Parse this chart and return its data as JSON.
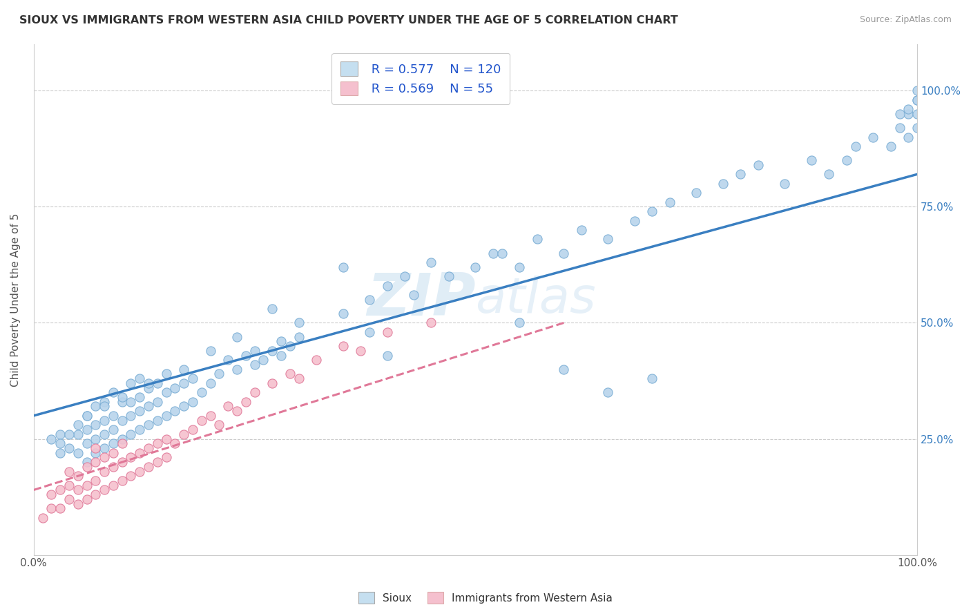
{
  "title": "SIOUX VS IMMIGRANTS FROM WESTERN ASIA CHILD POVERTY UNDER THE AGE OF 5 CORRELATION CHART",
  "source": "Source: ZipAtlas.com",
  "ylabel": "Child Poverty Under the Age of 5",
  "sioux_R": 0.577,
  "sioux_N": 120,
  "immigrants_R": 0.569,
  "immigrants_N": 55,
  "sioux_dot_color": "#b8d4ec",
  "sioux_dot_edge": "#7aadd4",
  "sioux_line_color": "#3a7fc1",
  "immigrants_dot_color": "#f5c0ce",
  "immigrants_dot_edge": "#e07898",
  "immigrants_line_color": "#e07898",
  "watermark": "ZIPAtlas",
  "legend_labels": [
    "Sioux",
    "Immigrants from Western Asia"
  ],
  "background_color": "#ffffff",
  "sioux_line_x0": 0.0,
  "sioux_line_y0": 0.3,
  "sioux_line_x1": 1.0,
  "sioux_line_y1": 0.82,
  "immig_line_x0": 0.0,
  "immig_line_y0": 0.14,
  "immig_line_x1": 0.6,
  "immig_line_y1": 0.5,
  "xmin": 0.0,
  "xmax": 1.0,
  "ymin": 0.0,
  "ymax": 1.1,
  "ytick_vals": [
    0.25,
    0.5,
    0.75,
    1.0
  ],
  "ytick_labels": [
    "25.0%",
    "50.0%",
    "75.0%",
    "100.0%"
  ],
  "xtick_vals": [
    0.0,
    1.0
  ],
  "xtick_labels": [
    "0.0%",
    "100.0%"
  ],
  "sioux_x": [
    0.02,
    0.03,
    0.03,
    0.04,
    0.05,
    0.05,
    0.06,
    0.06,
    0.06,
    0.06,
    0.07,
    0.07,
    0.07,
    0.07,
    0.08,
    0.08,
    0.08,
    0.08,
    0.09,
    0.09,
    0.09,
    0.09,
    0.1,
    0.1,
    0.1,
    0.11,
    0.11,
    0.11,
    0.11,
    0.12,
    0.12,
    0.12,
    0.12,
    0.13,
    0.13,
    0.13,
    0.14,
    0.14,
    0.14,
    0.15,
    0.15,
    0.15,
    0.16,
    0.16,
    0.17,
    0.17,
    0.18,
    0.18,
    0.19,
    0.2,
    0.21,
    0.22,
    0.23,
    0.24,
    0.25,
    0.25,
    0.26,
    0.27,
    0.28,
    0.28,
    0.29,
    0.3,
    0.35,
    0.38,
    0.4,
    0.42,
    0.45,
    0.47,
    0.5,
    0.52,
    0.53,
    0.55,
    0.57,
    0.6,
    0.62,
    0.65,
    0.68,
    0.7,
    0.72,
    0.75,
    0.78,
    0.8,
    0.82,
    0.85,
    0.88,
    0.9,
    0.92,
    0.93,
    0.95,
    0.97,
    0.98,
    0.99,
    0.99,
    1.0,
    1.0,
    1.0,
    1.0,
    1.0,
    0.99,
    0.98,
    0.55,
    0.6,
    0.65,
    0.7,
    0.35,
    0.38,
    0.4,
    0.43,
    0.3,
    0.27,
    0.23,
    0.2,
    0.17,
    0.13,
    0.1,
    0.08,
    0.06,
    0.05,
    0.04,
    0.03
  ],
  "sioux_y": [
    0.25,
    0.22,
    0.26,
    0.23,
    0.22,
    0.26,
    0.2,
    0.24,
    0.27,
    0.3,
    0.22,
    0.25,
    0.28,
    0.32,
    0.23,
    0.26,
    0.29,
    0.33,
    0.24,
    0.27,
    0.3,
    0.35,
    0.25,
    0.29,
    0.33,
    0.26,
    0.3,
    0.33,
    0.37,
    0.27,
    0.31,
    0.34,
    0.38,
    0.28,
    0.32,
    0.36,
    0.29,
    0.33,
    0.37,
    0.3,
    0.35,
    0.39,
    0.31,
    0.36,
    0.32,
    0.37,
    0.33,
    0.38,
    0.35,
    0.37,
    0.39,
    0.42,
    0.4,
    0.43,
    0.41,
    0.44,
    0.42,
    0.44,
    0.43,
    0.46,
    0.45,
    0.47,
    0.52,
    0.55,
    0.58,
    0.6,
    0.63,
    0.6,
    0.62,
    0.65,
    0.65,
    0.62,
    0.68,
    0.65,
    0.7,
    0.68,
    0.72,
    0.74,
    0.76,
    0.78,
    0.8,
    0.82,
    0.84,
    0.8,
    0.85,
    0.82,
    0.85,
    0.88,
    0.9,
    0.88,
    0.92,
    0.9,
    0.95,
    0.98,
    0.95,
    0.98,
    1.0,
    0.92,
    0.96,
    0.95,
    0.5,
    0.4,
    0.35,
    0.38,
    0.62,
    0.48,
    0.43,
    0.56,
    0.5,
    0.53,
    0.47,
    0.44,
    0.4,
    0.37,
    0.34,
    0.32,
    0.3,
    0.28,
    0.26,
    0.24
  ],
  "immig_x": [
    0.01,
    0.02,
    0.02,
    0.03,
    0.03,
    0.04,
    0.04,
    0.04,
    0.05,
    0.05,
    0.05,
    0.06,
    0.06,
    0.06,
    0.07,
    0.07,
    0.07,
    0.07,
    0.08,
    0.08,
    0.08,
    0.09,
    0.09,
    0.09,
    0.1,
    0.1,
    0.1,
    0.11,
    0.11,
    0.12,
    0.12,
    0.13,
    0.13,
    0.14,
    0.14,
    0.15,
    0.15,
    0.16,
    0.17,
    0.18,
    0.19,
    0.2,
    0.21,
    0.22,
    0.23,
    0.24,
    0.25,
    0.27,
    0.29,
    0.3,
    0.32,
    0.35,
    0.37,
    0.4,
    0.45
  ],
  "immig_y": [
    0.08,
    0.1,
    0.13,
    0.1,
    0.14,
    0.12,
    0.15,
    0.18,
    0.11,
    0.14,
    0.17,
    0.12,
    0.15,
    0.19,
    0.13,
    0.16,
    0.2,
    0.23,
    0.14,
    0.18,
    0.21,
    0.15,
    0.19,
    0.22,
    0.16,
    0.2,
    0.24,
    0.17,
    0.21,
    0.18,
    0.22,
    0.19,
    0.23,
    0.2,
    0.24,
    0.21,
    0.25,
    0.24,
    0.26,
    0.27,
    0.29,
    0.3,
    0.28,
    0.32,
    0.31,
    0.33,
    0.35,
    0.37,
    0.39,
    0.38,
    0.42,
    0.45,
    0.44,
    0.48,
    0.5
  ]
}
